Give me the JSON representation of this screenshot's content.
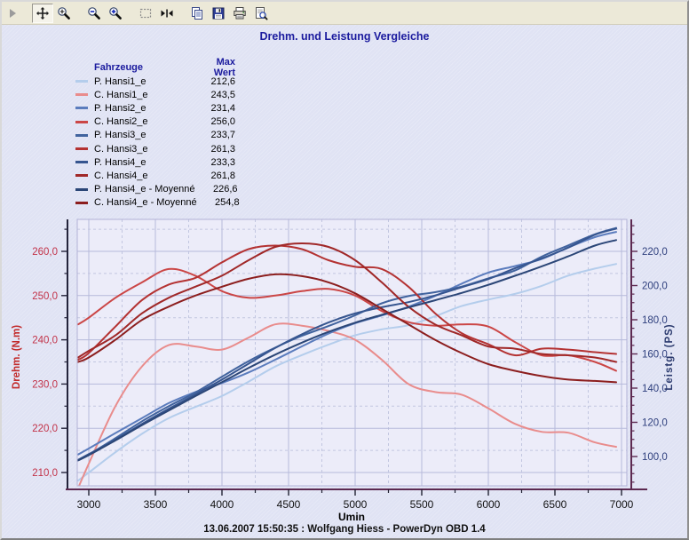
{
  "toolbar": {
    "buttons": [
      {
        "name": "overflow-arrow",
        "icon": "overflow-arrow-icon",
        "pressed": false
      },
      {
        "name": "pan",
        "icon": "move-icon",
        "pressed": true
      },
      {
        "name": "zoom-window",
        "icon": "zoom-window-icon",
        "pressed": false
      },
      {
        "name": "zoom-out",
        "icon": "zoom-out-icon",
        "pressed": false
      },
      {
        "name": "zoom-in",
        "icon": "zoom-in-icon",
        "pressed": false
      },
      {
        "name": "select-region",
        "icon": "selection-rect-icon",
        "pressed": false
      },
      {
        "name": "collapse-horizontal",
        "icon": "collapse-horizontal-icon",
        "pressed": false
      },
      {
        "name": "copy",
        "icon": "copy-icon",
        "pressed": false
      },
      {
        "name": "save",
        "icon": "save-icon",
        "pressed": false
      },
      {
        "name": "print",
        "icon": "print-icon",
        "pressed": false
      },
      {
        "name": "print-preview",
        "icon": "print-preview-icon",
        "pressed": false
      }
    ]
  },
  "chart": {
    "title": "Drehm. und Leistung Vergleiche",
    "caption": "13.06.2007 15:50:35 : Wolfgang Hiess - PowerDyn OBD 1.4",
    "legend": {
      "col_vehicle": "Fahrzeuge",
      "col_max": "Max Wert"
    },
    "axes": {
      "x": {
        "label": "Umin",
        "tick_labels": [
          "3000",
          "3500",
          "4000",
          "4500",
          "5000",
          "5500",
          "6000",
          "6500",
          "7000"
        ],
        "tick_values": [
          3000,
          3500,
          4000,
          4500,
          5000,
          5500,
          6000,
          6500,
          7000
        ],
        "minor_step": 250
      },
      "torque": {
        "label": "Drehm. (N.m)",
        "tick_labels": [
          "210,0",
          "220,0",
          "230,0",
          "240,0",
          "250,0",
          "260,0"
        ],
        "tick_values": [
          210,
          220,
          230,
          240,
          250,
          260
        ],
        "minor_values": [
          215,
          225,
          235,
          245,
          255,
          265
        ],
        "tick_color": "#c23248",
        "axis_color": "#23233a"
      },
      "power": {
        "label": "Leistg. (PS)",
        "tick_labels": [
          "100,0",
          "120,0",
          "140,0",
          "160,0",
          "180,0",
          "200,0",
          "220,0"
        ],
        "tick_values": [
          100,
          120,
          140,
          160,
          180,
          200,
          220
        ],
        "minor_step": 5,
        "tick_color": "#2e3f7d",
        "axis_color": "#5c2950"
      }
    },
    "colors": {
      "plot_bg": "#ececf9",
      "grid_major": "#b6badb",
      "grid_minor": "#c2c6e0",
      "bottom_axis": "#5c2950",
      "title": "#1b1b9e"
    }
  },
  "chart_data": {
    "type": "line",
    "title": "Drehm. und Leistung Vergleiche",
    "xlabel": "Umin",
    "ylabel_left": "Drehm. (N.m)",
    "ylabel_right": "Leistg. (PS)",
    "xlim": [
      2900,
      7050
    ],
    "ylim_left": [
      206.4,
      267.2
    ],
    "ylim_right": [
      81.0,
      238.8
    ],
    "grid": "major solid, minor dashed",
    "legend_position": "top-left",
    "x_rpm": [
      2920,
      3000,
      3200,
      3400,
      3600,
      3800,
      4000,
      4200,
      4400,
      4600,
      4800,
      5000,
      5200,
      5400,
      5600,
      5800,
      6000,
      6200,
      6400,
      6600,
      6800,
      6960
    ],
    "series": [
      {
        "name": "P. Hansi1_e",
        "axis": "power",
        "color": "#b4cdec",
        "max": "212,6",
        "values": [
          85.9,
          90.6,
          102.5,
          113.3,
          122.4,
          129.0,
          135.4,
          143.8,
          152.6,
          159.3,
          165.4,
          170.9,
          174.4,
          176.8,
          182.0,
          188.0,
          191.8,
          195.1,
          199.8,
          205.8,
          209.9,
          212.6
        ]
      },
      {
        "name": "C. Hansi1_e",
        "axis": "torque",
        "color": "#e98c8c",
        "max": "243,5",
        "values": [
          206.5,
          212.0,
          225.0,
          234.0,
          238.8,
          238.5,
          237.8,
          240.5,
          243.5,
          243.2,
          242.0,
          240.0,
          235.5,
          230.0,
          228.2,
          227.6,
          224.5,
          221.0,
          219.2,
          219.0,
          216.8,
          215.8
        ]
      },
      {
        "name": "P. Hansi2_e",
        "axis": "power",
        "color": "#5b7cbd",
        "max": "231,4",
        "values": [
          101.2,
          104.7,
          113.7,
          122.5,
          131.2,
          137.7,
          143.0,
          149.2,
          156.6,
          164.4,
          171.9,
          178.0,
          182.5,
          187.6,
          193.9,
          201.1,
          207.6,
          211.4,
          215.5,
          222.3,
          228.3,
          231.4
        ]
      },
      {
        "name": "C. Hansi2_e",
        "axis": "torque",
        "color": "#cb4646",
        "max": "256,0",
        "values": [
          243.5,
          245.0,
          249.5,
          253.0,
          256.0,
          254.5,
          251.0,
          249.5,
          250.0,
          251.0,
          251.5,
          250.0,
          246.5,
          244.0,
          243.2,
          243.5,
          243.0,
          239.5,
          236.5,
          236.5,
          235.0,
          233.0
        ]
      },
      {
        "name": "P. Hansi3_e",
        "axis": "power",
        "color": "#41639e",
        "max": "233,7",
        "values": [
          97.9,
          101.2,
          110.7,
          120.6,
          129.4,
          137.4,
          146.7,
          155.8,
          163.7,
          170.6,
          176.3,
          182.6,
          189.6,
          193.8,
          196.1,
          199.4,
          204.2,
          208.8,
          216.9,
          223.5,
          230.0,
          233.7
        ]
      },
      {
        "name": "C. Hansi3_e",
        "axis": "torque",
        "color": "#b43232",
        "max": "261,3",
        "values": [
          235.5,
          237.0,
          243.0,
          249.0,
          252.5,
          254.0,
          257.5,
          260.5,
          261.3,
          260.5,
          258.0,
          256.5,
          256.0,
          252.0,
          246.0,
          241.5,
          239.0,
          236.5,
          238.0,
          237.8,
          237.2,
          236.8
        ]
      },
      {
        "name": "P. Hansi4_e",
        "axis": "power",
        "color": "#36558f",
        "max": "233,3",
        "values": [
          98.1,
          101.4,
          109.8,
          119.1,
          127.9,
          136.3,
          145.0,
          154.3,
          163.5,
          171.5,
          178.4,
          183.7,
          187.3,
          190.3,
          194.2,
          199.0,
          203.8,
          210.1,
          215.8,
          222.2,
          229.7,
          233.3
        ]
      },
      {
        "name": "C. Hansi4_e",
        "axis": "torque",
        "color": "#a02828",
        "max": "261,8",
        "values": [
          236.0,
          237.5,
          241.0,
          246.0,
          249.5,
          252.0,
          254.5,
          258.0,
          261.0,
          261.8,
          261.0,
          258.0,
          253.0,
          247.5,
          243.5,
          241.0,
          238.5,
          238.0,
          236.8,
          236.5,
          236.0,
          235.0
        ]
      },
      {
        "name": "P. Hansi4_e - Moyenné",
        "axis": "power",
        "color": "#2b4677",
        "max": "226,6",
        "values": [
          97.7,
          100.8,
          109.4,
          118.4,
          126.9,
          135.3,
          143.5,
          151.8,
          159.6,
          166.6,
          172.9,
          178.3,
          182.9,
          187.2,
          191.4,
          195.7,
          200.4,
          205.7,
          211.2,
          217.1,
          223.4,
          226.6
        ]
      },
      {
        "name": "C. Hansi4_e - Moyenné",
        "axis": "torque",
        "color": "#8c1e1e",
        "max": "254,8",
        "values": [
          235.0,
          236.0,
          240.0,
          244.5,
          247.5,
          250.0,
          252.0,
          253.8,
          254.8,
          254.4,
          253.0,
          250.5,
          247.0,
          243.5,
          240.0,
          237.0,
          234.5,
          233.0,
          231.8,
          231.0,
          230.7,
          230.4
        ]
      }
    ]
  }
}
